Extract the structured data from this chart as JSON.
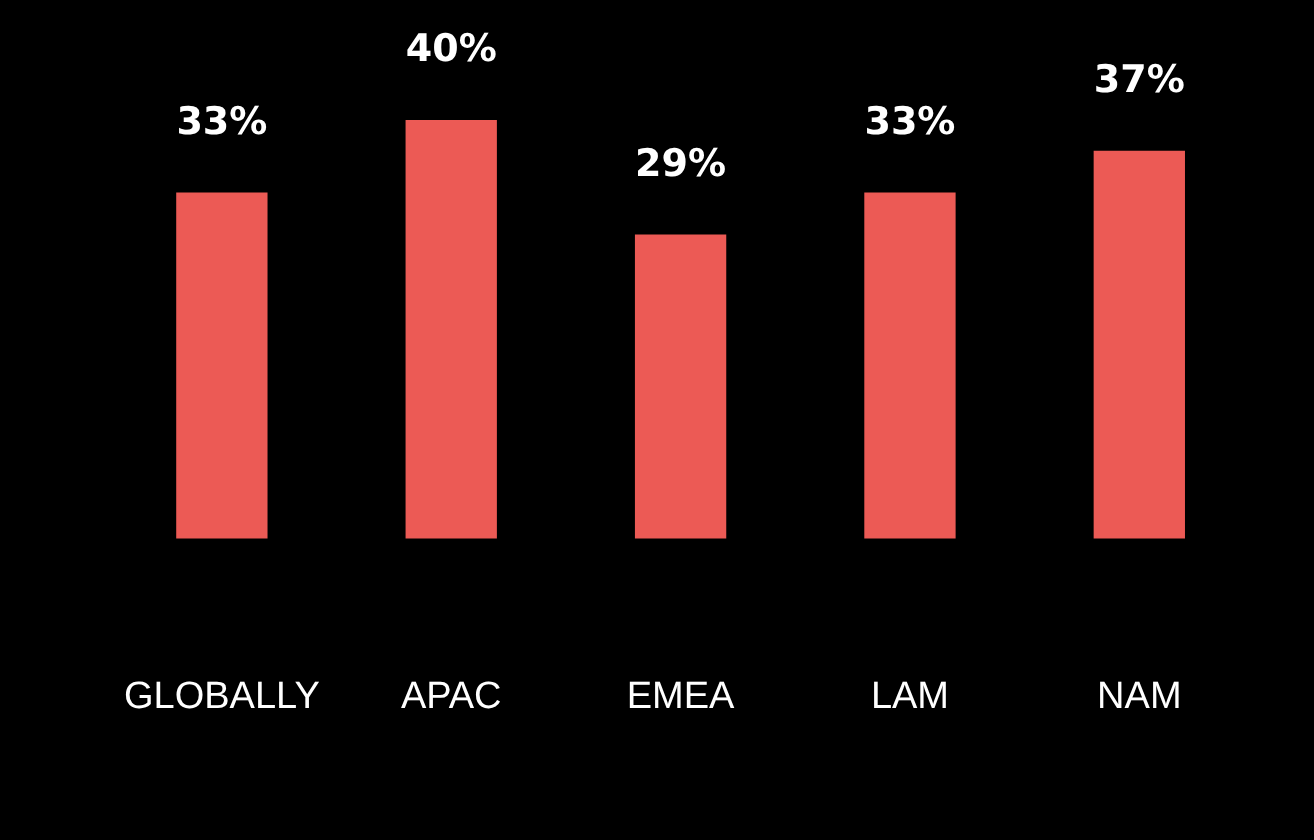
{
  "chart_data": {
    "type": "bar",
    "categories": [
      "GLOBALLY",
      "APAC",
      "EMEA",
      "LAM",
      "NAM"
    ],
    "values": [
      33,
      40,
      29,
      33,
      37
    ],
    "color": "#ec5a55",
    "value_labels": [
      "33%",
      "40%",
      "29%",
      "33%",
      "37%"
    ]
  }
}
